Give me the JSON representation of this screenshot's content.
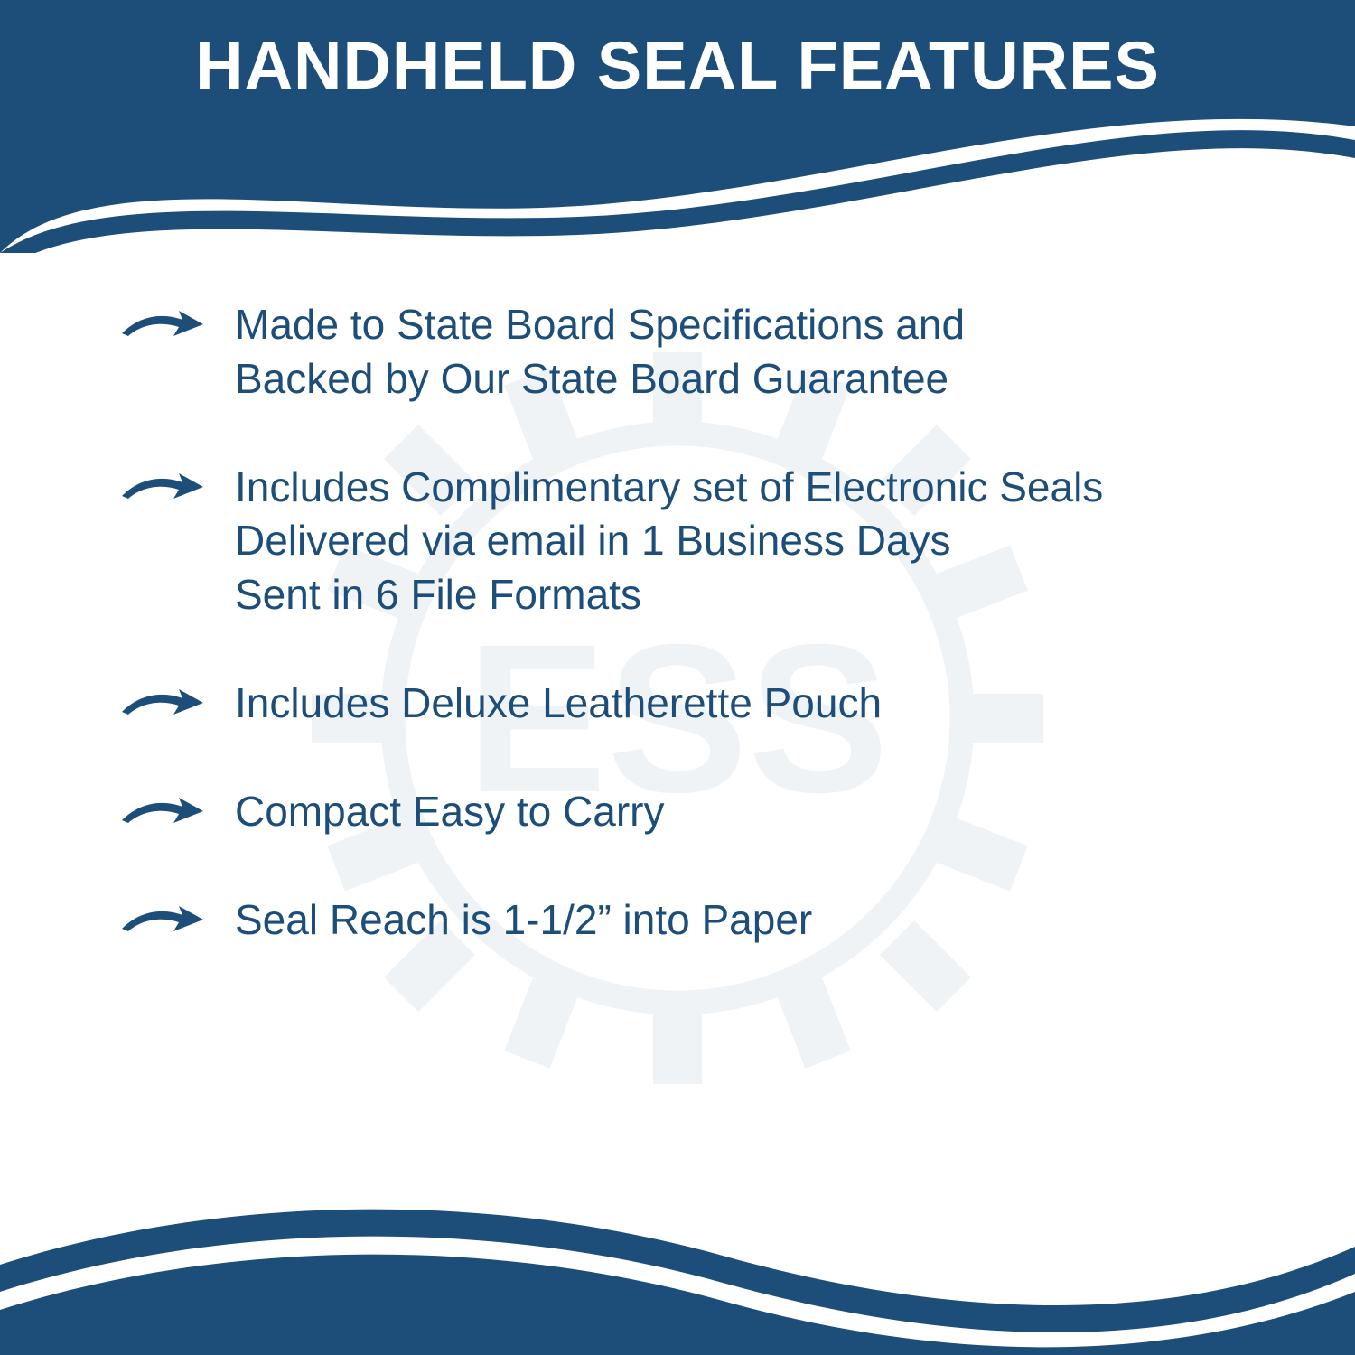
{
  "colors": {
    "brand": "#1d4e7a",
    "text": "#1d4e7a",
    "white": "#ffffff",
    "watermark": "#1d4e7a"
  },
  "header": {
    "title": "HANDHELD SEAL FEATURES"
  },
  "watermark_text": "ESS",
  "features": [
    {
      "lines": [
        "Made to State Board Specifications and",
        "Backed by Our State Board Guarantee"
      ]
    },
    {
      "lines": [
        "Includes Complimentary set of Electronic Seals",
        "Delivered via email in 1 Business Days",
        "Sent in 6 File Formats"
      ]
    },
    {
      "lines": [
        "Includes Deluxe Leatherette Pouch"
      ]
    },
    {
      "lines": [
        "Compact Easy to Carry"
      ]
    },
    {
      "lines": [
        "Seal Reach is 1-1/2” into Paper"
      ]
    }
  ]
}
